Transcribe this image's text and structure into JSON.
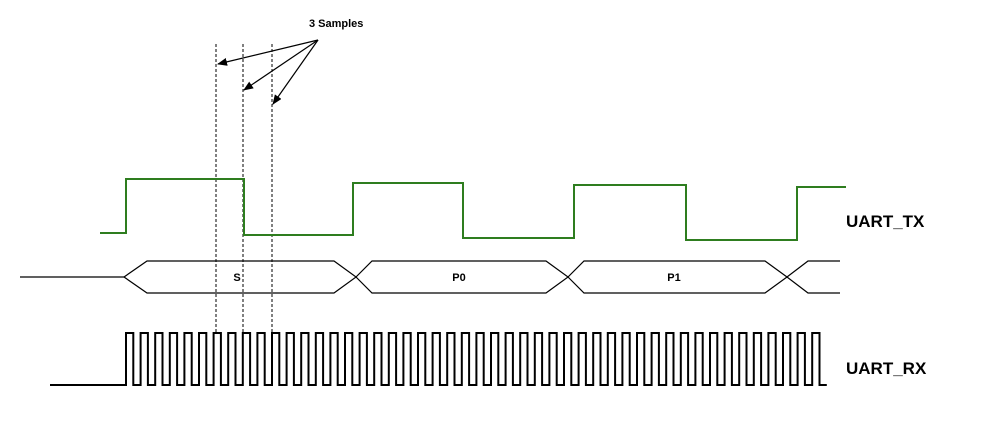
{
  "annotation": {
    "text": "3 Samples"
  },
  "signals": {
    "tx": {
      "label": "UART_TX",
      "color": "#2e7d1f"
    },
    "rx": {
      "label": "UART_RX",
      "color": "#000000"
    }
  },
  "bus": {
    "segments": [
      "S",
      "P0",
      "P1"
    ]
  }
}
